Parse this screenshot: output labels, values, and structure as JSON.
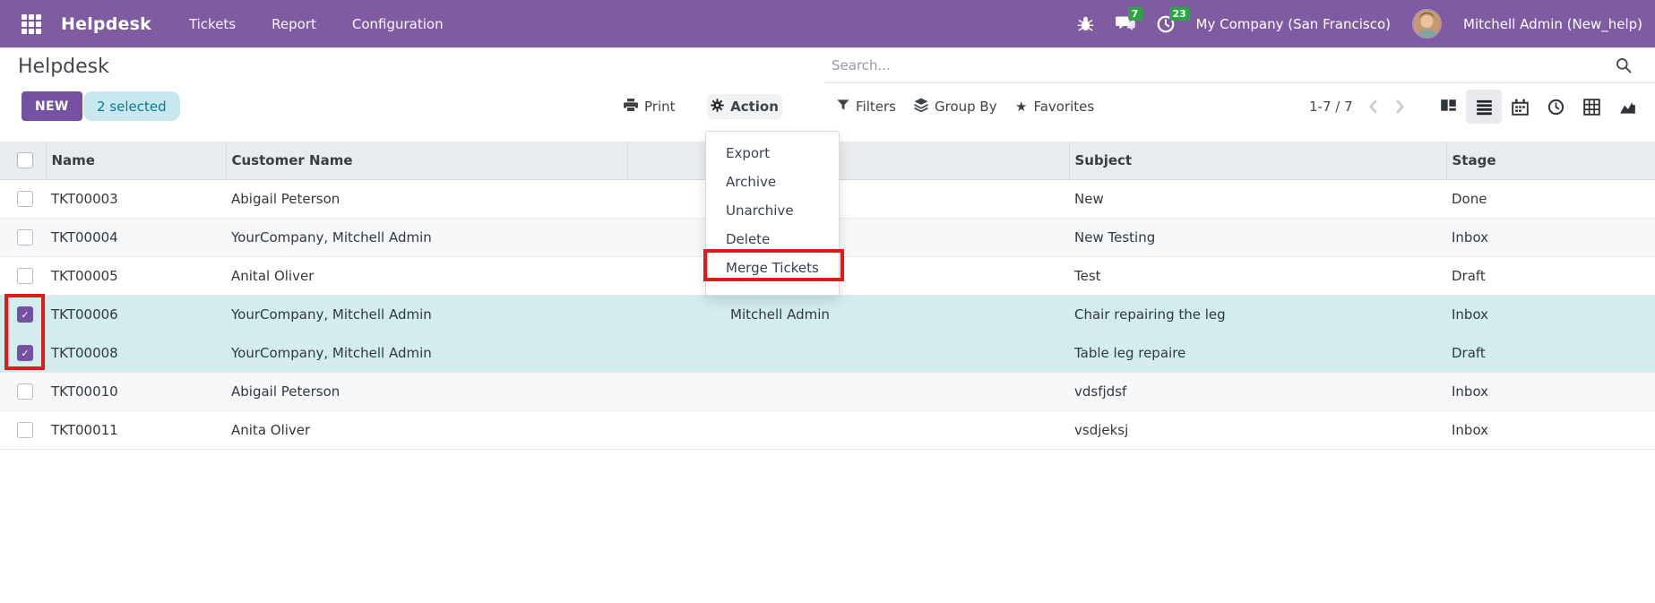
{
  "topbar": {
    "app_name": "Helpdesk",
    "menus": [
      "Tickets",
      "Report",
      "Configuration"
    ],
    "messages_badge": "7",
    "activities_badge": "23",
    "company": "My Company (San Francisco)",
    "user": "Mitchell Admin (New_help)"
  },
  "control_panel": {
    "breadcrumb": "Helpdesk",
    "search_placeholder": "Search...",
    "new_button": "NEW",
    "selected_badge": "2 selected",
    "print_label": "Print",
    "action_label": "Action",
    "filters_label": "Filters",
    "group_by_label": "Group By",
    "favorites_label": "Favorites",
    "pager": "1-7 / 7"
  },
  "action_menu": {
    "items": [
      "Export",
      "Archive",
      "Unarchive",
      "Delete",
      "Merge Tickets"
    ],
    "highlighted": "Merge Tickets"
  },
  "table": {
    "headers": [
      "Name",
      "Customer Name",
      "",
      "Subject",
      "Stage"
    ],
    "rows": [
      {
        "name": "TKT00003",
        "customer": "Abigail Peterson",
        "assigned": "",
        "subject": "New",
        "stage": "Done",
        "selected": false
      },
      {
        "name": "TKT00004",
        "customer": "YourCompany, Mitchell Admin",
        "assigned": "",
        "subject": "New Testing",
        "stage": "Inbox",
        "selected": false
      },
      {
        "name": "TKT00005",
        "customer": "Anital Oliver",
        "assigned": "",
        "subject": "Test",
        "stage": "Draft",
        "selected": false
      },
      {
        "name": "TKT00006",
        "customer": "YourCompany, Mitchell Admin",
        "assigned": "Mitchell Admin",
        "subject": "Chair repairing the leg",
        "stage": "Inbox",
        "selected": true
      },
      {
        "name": "TKT00008",
        "customer": "YourCompany, Mitchell Admin",
        "assigned": "",
        "subject": "Table leg repaire",
        "stage": "Draft",
        "selected": true
      },
      {
        "name": "TKT00010",
        "customer": "Abigail Peterson",
        "assigned": "",
        "subject": "vdsfjdsf",
        "stage": "Inbox",
        "selected": false
      },
      {
        "name": "TKT00011",
        "customer": "Anita Oliver",
        "assigned": "",
        "subject": "vsdjeksj",
        "stage": "Inbox",
        "selected": false
      }
    ]
  },
  "colors": {
    "topbar_purple": "#7F5CA2",
    "accent_purple": "#7551A1",
    "selected_row_cyan": "#D3EDEE",
    "selected_badge_bg": "#C9E7EE",
    "selected_badge_text": "#007E93",
    "badge_green": "#2CA444",
    "annotation_red": "#E01A1A"
  }
}
